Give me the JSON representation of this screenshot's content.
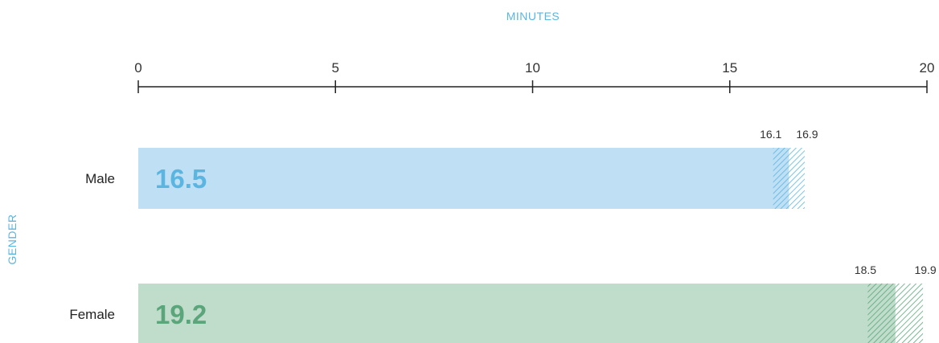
{
  "chart_data": {
    "type": "bar",
    "orientation": "horizontal",
    "xlabel": "MINUTES",
    "ylabel": "GENDER",
    "xlim": [
      0,
      20
    ],
    "xticks": [
      0,
      5,
      10,
      15,
      20
    ],
    "xtick_labels": [
      "0",
      "5",
      "10",
      "15",
      "20"
    ],
    "axis_position": "top",
    "grid": false,
    "categories": [
      "Male",
      "Female"
    ],
    "values": [
      16.5,
      19.2
    ],
    "value_labels": [
      "16.5",
      "19.2"
    ],
    "ci_low": [
      16.1,
      18.5
    ],
    "ci_high": [
      16.9,
      19.9
    ],
    "ci_low_labels": [
      "16.1",
      "18.5"
    ],
    "ci_high_labels": [
      "16.9",
      "19.9"
    ],
    "bar_colors": [
      "#bedff4",
      "#c0dccb"
    ],
    "value_label_colors": [
      "#5bb5e1",
      "#5aa67a"
    ],
    "hatch_colors": [
      "#5bb5e1",
      "#5aa67a"
    ],
    "axis_title_color": "#5bb5e1"
  }
}
